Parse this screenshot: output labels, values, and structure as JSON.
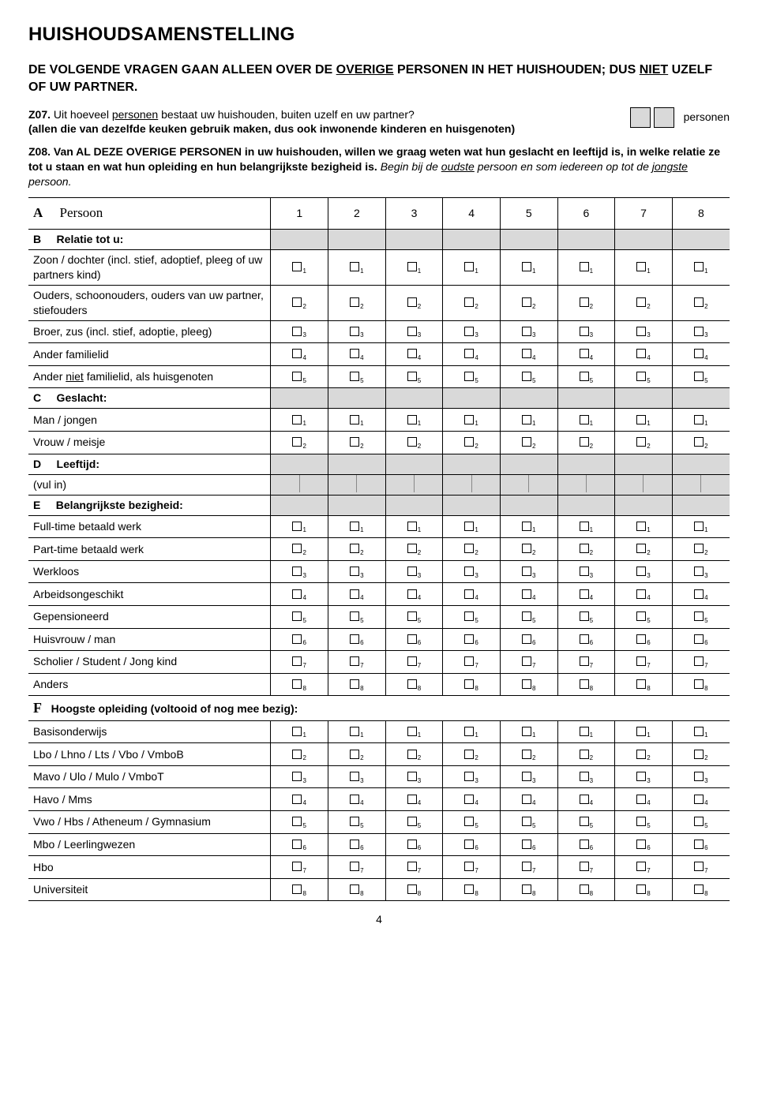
{
  "title": "HUISHOUDSAMENSTELLING",
  "intro": {
    "pre": "DE VOLGENDE VRAGEN GAAN ALLEEN OVER DE ",
    "u1": "OVERIGE",
    "mid": " PERSONEN IN HET HUISHOUDEN; DUS ",
    "u2": "NIET",
    "post": " UZELF OF UW PARTNER."
  },
  "q07": {
    "code": "Z07.",
    "line1_a": " Uit hoeveel ",
    "line1_u": "personen",
    "line1_b": " bestaat uw huishouden, buiten uzelf en uw partner?",
    "line2": "(allen die van dezelfde keuken gebruik maken, dus ook inwonende kinderen en huisgenoten)",
    "boxlabel": "personen"
  },
  "q08": {
    "code": "Z08.",
    "body": " Van AL DEZE OVERIGE PERSONEN in uw huishouden, willen we graag weten wat hun geslacht en leeftijd is, in welke relatie ze tot u staan en wat hun opleiding en hun belangrijkste bezigheid is.",
    "ital_a": " Begin bij de ",
    "ital_u1": "oudste",
    "ital_b": " persoon en som iedereen op tot de ",
    "ital_u2": "jongste",
    "ital_c": " persoon."
  },
  "columns": [
    "1",
    "2",
    "3",
    "4",
    "5",
    "6",
    "7",
    "8"
  ],
  "secA": {
    "letter": "A",
    "label": "Persoon"
  },
  "secB": {
    "letter": "B",
    "head": "Relatie tot u:",
    "rows": [
      {
        "label": "Zoon / dochter (incl. stief, adoptief, pleeg of uw partners kind)",
        "sub": "1"
      },
      {
        "label": "Ouders, schoonouders, ouders van uw partner, stiefouders",
        "sub": "2"
      },
      {
        "label": "Broer, zus (incl. stief, adoptie, pleeg)",
        "sub": "3"
      },
      {
        "label": "Ander familielid",
        "sub": "4"
      },
      {
        "label_pre": "Ander ",
        "label_u": "niet",
        "label_post": " familielid, als huisgenoten",
        "sub": "5"
      }
    ]
  },
  "secC": {
    "letter": "C",
    "head": "Geslacht:",
    "rows": [
      {
        "label": "Man / jongen",
        "sub": "1"
      },
      {
        "label": "Vrouw / meisje",
        "sub": "2"
      }
    ]
  },
  "secD": {
    "letter": "D",
    "head": "Leeftijd:",
    "vulin": "(vul in)"
  },
  "secE": {
    "letter": "E",
    "head": "Belangrijkste bezigheid:",
    "rows": [
      {
        "label": "Full-time betaald werk",
        "sub": "1"
      },
      {
        "label": "Part-time betaald werk",
        "sub": "2"
      },
      {
        "label": "Werkloos",
        "sub": "3"
      },
      {
        "label": "Arbeidsongeschikt",
        "sub": "4"
      },
      {
        "label": "Gepensioneerd",
        "sub": "5"
      },
      {
        "label": "Huisvrouw / man",
        "sub": "6"
      },
      {
        "label": "Scholier / Student / Jong kind",
        "sub": "7"
      },
      {
        "label": "Anders",
        "sub": "8"
      }
    ]
  },
  "secF": {
    "letter": "F",
    "head": "Hoogste opleiding (voltooid of nog mee bezig):",
    "rows": [
      {
        "label": "Basisonderwijs",
        "sub": "1"
      },
      {
        "label": "Lbo / Lhno / Lts / Vbo / VmboB",
        "sub": "2"
      },
      {
        "label": "Mavo / Ulo / Mulo / VmboT",
        "sub": "3"
      },
      {
        "label": "Havo / Mms",
        "sub": "4"
      },
      {
        "label": "Vwo / Hbs / Atheneum / Gymnasium",
        "sub": "5"
      },
      {
        "label": "Mbo / Leerlingwezen",
        "sub": "6"
      },
      {
        "label": "Hbo",
        "sub": "7"
      },
      {
        "label": "Universiteit",
        "sub": "8"
      }
    ]
  },
  "pagenum": "4"
}
